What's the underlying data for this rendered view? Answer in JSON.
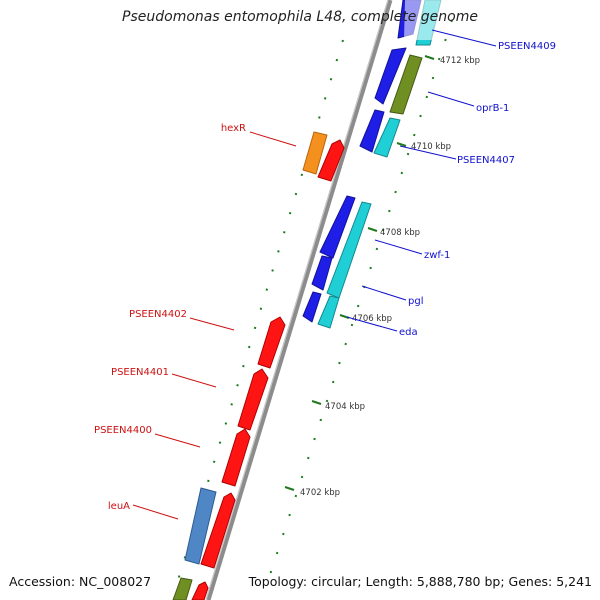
{
  "title": "Pseudomonas entomophila L48, complete genome",
  "footer": {
    "accession": "Accession: NC_008027",
    "stats": "Topology: circular; Length: 5,888,780 bp; Genes: 5,241"
  },
  "colors": {
    "backbone": "#888888",
    "tick": "#1f7a1f",
    "label_forward": "#cc1111",
    "label_reverse": "#1111cc"
  },
  "scale": [
    "4702 kbp",
    "4704 kbp",
    "4706 kbp",
    "4708 kbp",
    "4710 kbp",
    "4712 kbp"
  ],
  "genes": [
    {
      "label": "PSEEN4409",
      "strand": "reverse"
    },
    {
      "label": "oprB-1",
      "strand": "reverse"
    },
    {
      "label": "PSEEN4407",
      "strand": "reverse"
    },
    {
      "label": "zwf-1",
      "strand": "reverse"
    },
    {
      "label": "pgl",
      "strand": "reverse"
    },
    {
      "label": "eda",
      "strand": "reverse"
    },
    {
      "label": "hexR",
      "strand": "forward"
    },
    {
      "label": "PSEEN4402",
      "strand": "forward"
    },
    {
      "label": "PSEEN4401",
      "strand": "forward"
    },
    {
      "label": "PSEEN4400",
      "strand": "forward"
    },
    {
      "label": "leuA",
      "strand": "forward"
    }
  ]
}
